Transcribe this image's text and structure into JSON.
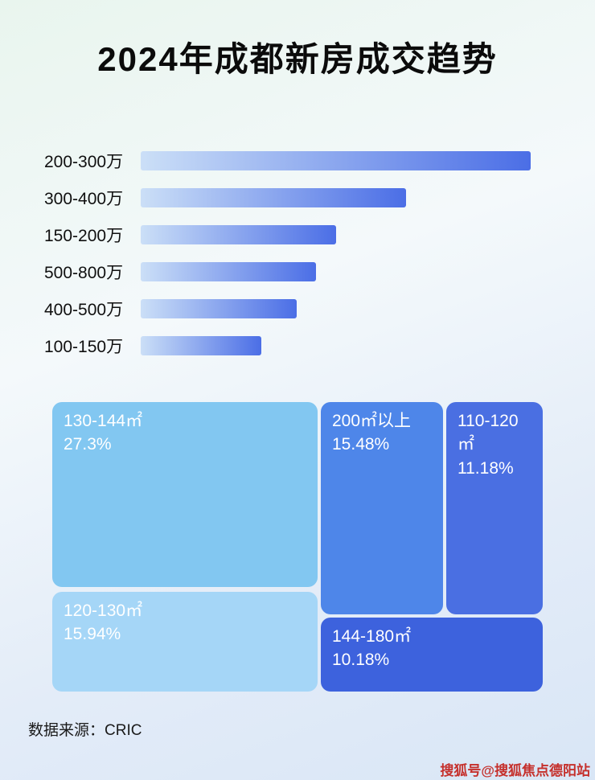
{
  "page": {
    "title": "2024年成都新房成交趋势",
    "source_note": "数据来源：CRIC",
    "watermark": "搜狐号@搜狐焦点德阳站"
  },
  "colors": {
    "bar_gradient_start": "#cbdff7",
    "bar_gradient_end": "#4b6ee6",
    "title_color": "#0b0b0b",
    "watermark_color": "#c5302c",
    "background_light": "#eef6f2",
    "background_blue": "#dbe7f6"
  },
  "chart_data": [
    {
      "type": "bar",
      "orientation": "horizontal",
      "title": "2024年成都新房成交趋势",
      "categories": [
        "200-300万",
        "300-400万",
        "150-200万",
        "500-800万",
        "400-500万",
        "100-150万"
      ],
      "values": [
        100,
        68,
        50,
        45,
        40,
        31
      ],
      "values_note": "bars carry no numeric labels; values are estimated bar lengths as percent of the longest bar",
      "xlabel": "",
      "ylabel": "",
      "grid": false,
      "legend": false
    },
    {
      "type": "treemap",
      "items": [
        {
          "label": "130-144㎡",
          "percent_label": "27.3%",
          "value": 27.3,
          "color": "#82c7f1"
        },
        {
          "label": "200㎡以上",
          "percent_label": "15.48%",
          "value": 15.48,
          "color": "#4e86e9"
        },
        {
          "label": "110-120㎡",
          "percent_label": "11.18%",
          "value": 11.18,
          "color": "#4a6fe2"
        },
        {
          "label": "120-130㎡",
          "percent_label": "15.94%",
          "value": 15.94,
          "color": "#a5d6f7"
        },
        {
          "label": "144-180㎡",
          "percent_label": "10.18%",
          "value": 10.18,
          "color": "#3d62dd"
        }
      ]
    }
  ]
}
